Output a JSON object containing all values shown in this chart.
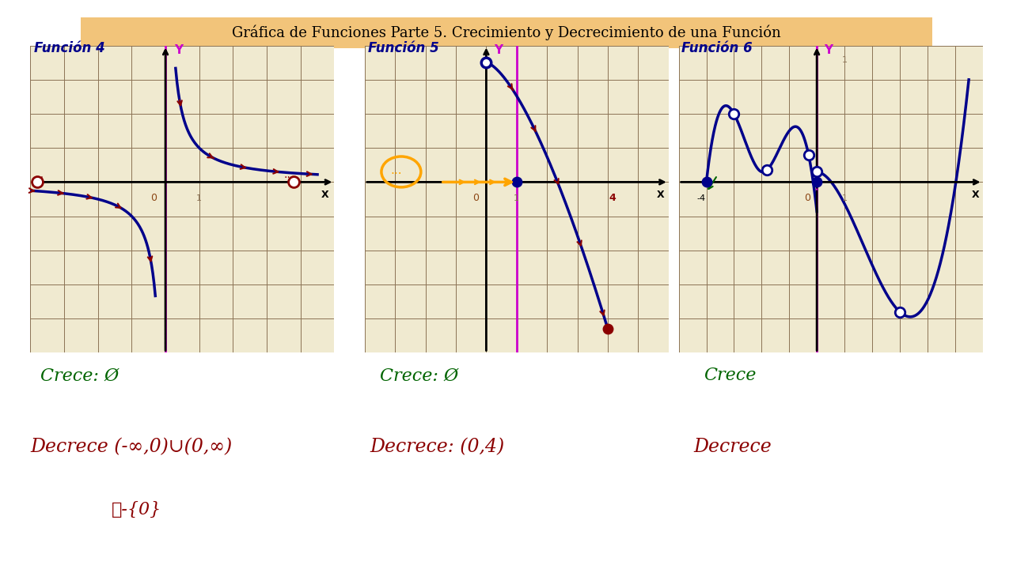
{
  "title": "Gráfica de Funciones Parte 5. Crecimiento y Decrecimiento de una Función",
  "title_bg": "#f2c47a",
  "title_fontsize": 13,
  "background_color": "#ffffff",
  "grid_color": "#8B7355",
  "grid_bg": "#f0ead0",
  "panel_titles": [
    "Función 4",
    "Función 5",
    "Función 6"
  ],
  "panel_title_color": "#00008B",
  "magenta_color": "#cc00cc",
  "crece_texts": [
    "Crece: Ø",
    "Crece: Ø",
    "Crece"
  ],
  "decrece_texts": [
    "Decrece (-∞,0)∪(0,∞)",
    "Decrece: (0,4)",
    "Decrece"
  ],
  "extra_text": "ℝ-{0}",
  "text_crece_color": "#006400",
  "text_decrece_color": "#8B0000",
  "curve_color": "#00008B",
  "arrow_color": "#8B0000",
  "orange_color": "#FFA500",
  "green_color": "#006400"
}
